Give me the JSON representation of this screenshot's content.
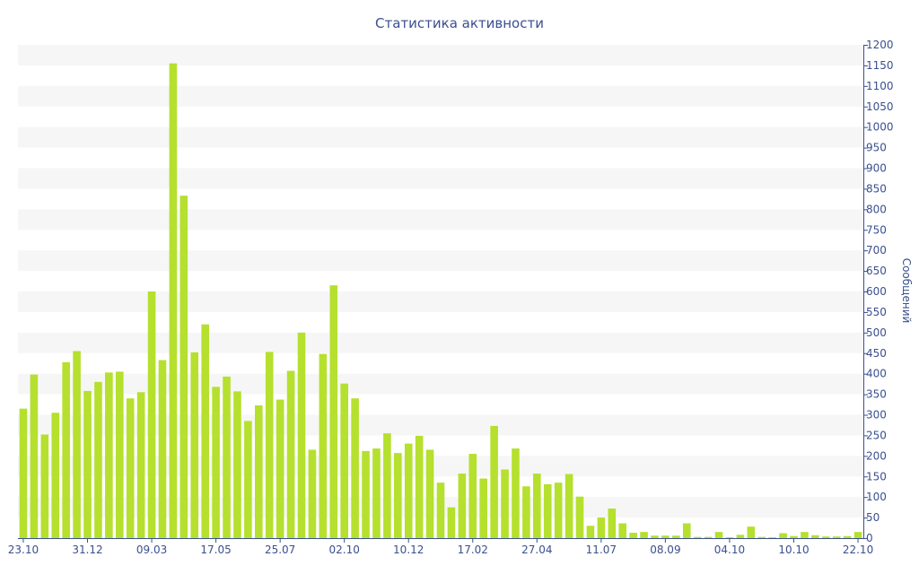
{
  "chart_data": {
    "type": "bar",
    "title": "Статистика активности",
    "ylabel": "Сообщений",
    "ylim": [
      0,
      1200
    ],
    "y_ticks": [
      0,
      50,
      100,
      150,
      200,
      250,
      300,
      350,
      400,
      450,
      500,
      550,
      600,
      650,
      700,
      750,
      800,
      850,
      900,
      950,
      1000,
      1050,
      1100,
      1150,
      1200
    ],
    "y_axis_side": "right",
    "x_tick_labels": [
      {
        "index": 0,
        "label": "23.10"
      },
      {
        "index": 6,
        "label": "31.12"
      },
      {
        "index": 12,
        "label": "09.03"
      },
      {
        "index": 18,
        "label": "17.05"
      },
      {
        "index": 24,
        "label": "25.07"
      },
      {
        "index": 30,
        "label": "02.10"
      },
      {
        "index": 36,
        "label": "10.12"
      },
      {
        "index": 42,
        "label": "17.02"
      },
      {
        "index": 48,
        "label": "27.04"
      },
      {
        "index": 54,
        "label": "11.07"
      },
      {
        "index": 60,
        "label": "08.09"
      },
      {
        "index": 66,
        "label": "04.10"
      },
      {
        "index": 72,
        "label": "10.10"
      },
      {
        "index": 78,
        "label": "22.10"
      }
    ],
    "values": [
      315,
      398,
      252,
      305,
      428,
      455,
      358,
      380,
      403,
      405,
      340,
      355,
      600,
      433,
      1155,
      833,
      452,
      520,
      368,
      393,
      357,
      285,
      323,
      453,
      337,
      407,
      500,
      215,
      448,
      615,
      376,
      340,
      212,
      218,
      255,
      207,
      230,
      249,
      215,
      135,
      75,
      157,
      205,
      145,
      273,
      167,
      218,
      126,
      157,
      131,
      135,
      156,
      101,
      30,
      50,
      72,
      36,
      13,
      15,
      6,
      6,
      6,
      36,
      3,
      3,
      15,
      2,
      8,
      28,
      3,
      2,
      12,
      5,
      15,
      7,
      4,
      4,
      5,
      15
    ],
    "grid": "alternating-bands",
    "legend": "none",
    "colors": {
      "bar": "#b5e02e",
      "text": "#3a4f8f",
      "band": "#f6f6f6"
    }
  }
}
